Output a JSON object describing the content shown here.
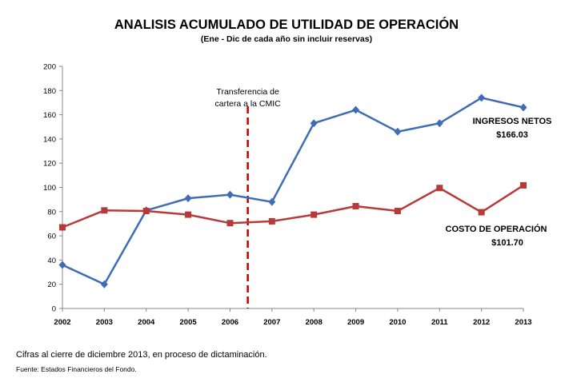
{
  "chart_data": {
    "type": "line",
    "title": "ANALISIS ACUMULADO DE UTILIDAD DE OPERACIÓN",
    "subtitle": "(Ene - Dic de cada año sin incluir reservas)",
    "categories": [
      "2002",
      "2003",
      "2004",
      "2005",
      "2006",
      "2007",
      "2008",
      "2009",
      "2010",
      "2011",
      "2012",
      "2013"
    ],
    "ylim": [
      0,
      200
    ],
    "yticks": [
      0,
      20,
      40,
      60,
      80,
      100,
      120,
      140,
      160,
      180,
      200
    ],
    "grid": false,
    "series": [
      {
        "name": "INGRESOS NETOS",
        "end_label": "$166.03",
        "color": "#3E6DB5",
        "marker": "diamond",
        "values": [
          36,
          20,
          81,
          91,
          94,
          88,
          153,
          164,
          146,
          153,
          174,
          166.03
        ]
      },
      {
        "name": "COSTO DE OPERACIÓN",
        "end_label": "$101.70",
        "color": "#B73A3A",
        "marker": "square",
        "values": [
          67,
          81,
          80.5,
          77.5,
          70.5,
          72,
          77.5,
          84.5,
          80.5,
          99.5,
          79.5,
          101.7
        ]
      }
    ],
    "annotation": {
      "lines": [
        "Transferencia de",
        "cartera a la CMIC"
      ],
      "x_position": "between 2006 and 2007",
      "line_color": "#C00000",
      "line_style": "dashed"
    }
  },
  "footnotes": {
    "note": "Cifras al cierre de diciembre 2013, en proceso de dictaminación.",
    "source": "Fuente: Estados Financieros del Fondo."
  }
}
